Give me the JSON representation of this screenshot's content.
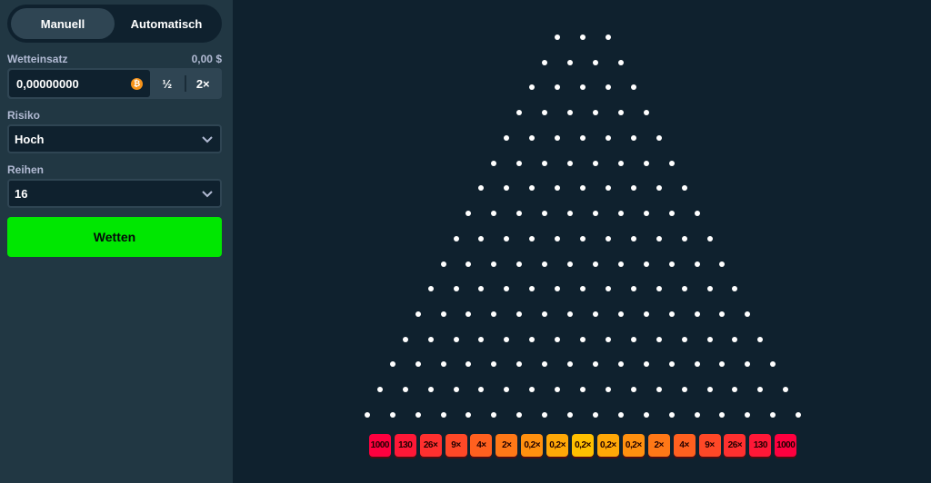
{
  "sidebar": {
    "tabs": [
      {
        "label": "Manuell",
        "active": true
      },
      {
        "label": "Automatisch",
        "active": false
      }
    ],
    "bet_label": "Wetteinsatz",
    "bet_usd": "0,00 $",
    "bet_value": "0,00000000",
    "currency_icon": "bitcoin-icon",
    "half_label": "½",
    "double_label": "2×",
    "risk_label": "Risiko",
    "risk_value": "Hoch",
    "rows_label": "Reihen",
    "rows_value": "16",
    "bet_button": "Wetten"
  },
  "board": {
    "rows": 16,
    "multipliers": [
      "1000",
      "130",
      "26×",
      "9×",
      "4×",
      "2×",
      "0,2×",
      "0,2×",
      "0,2×",
      "0,2×",
      "0,2×",
      "2×",
      "4×",
      "9×",
      "26×",
      "130",
      "1000"
    ],
    "colors": [
      "#ff003f",
      "#ff1837",
      "#ff302f",
      "#ff4827",
      "#ff601f",
      "#ff7817",
      "#ff900f",
      "#ffa807",
      "#ffc000"
    ]
  }
}
